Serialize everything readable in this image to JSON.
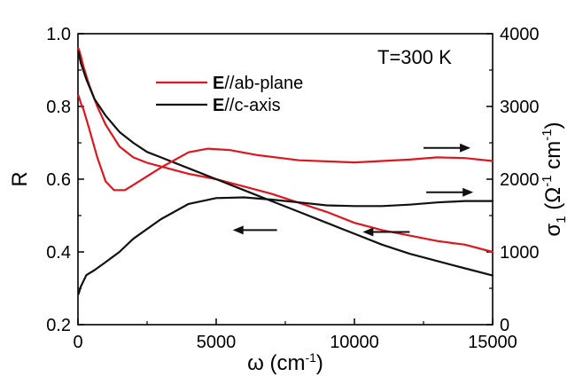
{
  "chart_data": {
    "type": "line",
    "xlabel": "ω (cm",
    "xlabel_sup": "-1",
    "xlabel_close": ")",
    "ylabel_left": "R",
    "ylabel_right": "σ",
    "ylabel_right_sub": "1",
    "ylabel_right_unit_a": " (Ω",
    "ylabel_right_sup1": "-1",
    "ylabel_right_unit_b": " cm",
    "ylabel_right_sup2": "-1",
    "ylabel_right_close": ")",
    "xlim": [
      0,
      15000
    ],
    "ylim_left": [
      0.2,
      1.0
    ],
    "ylim_right": [
      0,
      4000
    ],
    "xticks": [
      "0",
      "5000",
      "10000",
      "15000"
    ],
    "yticks_left": [
      "0.2",
      "0.4",
      "0.6",
      "0.8",
      "1.0"
    ],
    "yticks_right": [
      "0",
      "1000",
      "2000",
      "3000",
      "4000"
    ],
    "grid": false,
    "legend_position": "upper-middle",
    "annotation": "T=300 K",
    "colors": {
      "ab": "#e0161e",
      "c": "#111111"
    },
    "legend": [
      {
        "bold": "E",
        "rest": "//ab-plane",
        "color": "#e0161e"
      },
      {
        "bold": "E",
        "rest": "//c-axis",
        "color": "#111111"
      }
    ],
    "series": [
      {
        "legend": "E//ab-plane",
        "axis": "left",
        "quantity": "R",
        "x": [
          20,
          100,
          200,
          400,
          700,
          1000,
          1500,
          2000,
          2500,
          3000,
          4000,
          5000,
          6000,
          7000,
          8000,
          9000,
          10000,
          11000,
          12000,
          13000,
          14000,
          15000
        ],
        "y": [
          0.96,
          0.94,
          0.91,
          0.86,
          0.8,
          0.75,
          0.69,
          0.66,
          0.645,
          0.635,
          0.615,
          0.6,
          0.58,
          0.56,
          0.535,
          0.51,
          0.48,
          0.46,
          0.445,
          0.43,
          0.42,
          0.4
        ]
      },
      {
        "legend": "E//c-axis",
        "axis": "left",
        "quantity": "R",
        "x": [
          20,
          100,
          300,
          600,
          1000,
          1500,
          2000,
          2500,
          3000,
          4000,
          5000,
          6000,
          7000,
          8000,
          9000,
          10000,
          11000,
          12000,
          13000,
          14000,
          15000
        ],
        "y": [
          0.95,
          0.92,
          0.875,
          0.82,
          0.775,
          0.73,
          0.7,
          0.675,
          0.66,
          0.63,
          0.6,
          0.57,
          0.54,
          0.51,
          0.48,
          0.45,
          0.42,
          0.395,
          0.375,
          0.355,
          0.335
        ]
      },
      {
        "legend": "E//ab-plane",
        "axis": "right",
        "quantity": "σ1",
        "x": [
          20,
          100,
          200,
          400,
          700,
          1000,
          1300,
          1700,
          2000,
          3000,
          4000,
          4700,
          5500,
          6500,
          8000,
          10000,
          11000,
          12000,
          13000,
          14000,
          15000
        ],
        "y": [
          3150,
          3050,
          2960,
          2700,
          2300,
          1970,
          1850,
          1850,
          1920,
          2160,
          2370,
          2420,
          2400,
          2330,
          2260,
          2230,
          2250,
          2270,
          2300,
          2290,
          2250
        ]
      },
      {
        "legend": "E//c-axis",
        "axis": "right",
        "quantity": "σ1",
        "x": [
          20,
          100,
          300,
          600,
          1000,
          1500,
          2000,
          3000,
          4000,
          5000,
          6000,
          7000,
          8000,
          9000,
          10000,
          11000,
          12000,
          13000,
          14000,
          15000
        ],
        "y": [
          420,
          520,
          680,
          750,
          860,
          1000,
          1180,
          1450,
          1660,
          1740,
          1750,
          1720,
          1680,
          1640,
          1630,
          1630,
          1650,
          1680,
          1700,
          1700
        ]
      }
    ],
    "arrows": [
      {
        "direction": "right",
        "axis": "right",
        "x_start": 12500,
        "x_end": 14200,
        "y": 2430,
        "color": "#111111"
      },
      {
        "direction": "right",
        "axis": "right",
        "x_start": 12600,
        "x_end": 14300,
        "y": 1820,
        "color": "#111111"
      },
      {
        "direction": "left",
        "axis": "left",
        "x_start": 7200,
        "x_end": 5600,
        "y": 0.46,
        "color": "#111111"
      },
      {
        "direction": "left",
        "axis": "left",
        "x_start": 12000,
        "x_end": 10300,
        "y": 0.455,
        "color": "#111111"
      }
    ]
  }
}
